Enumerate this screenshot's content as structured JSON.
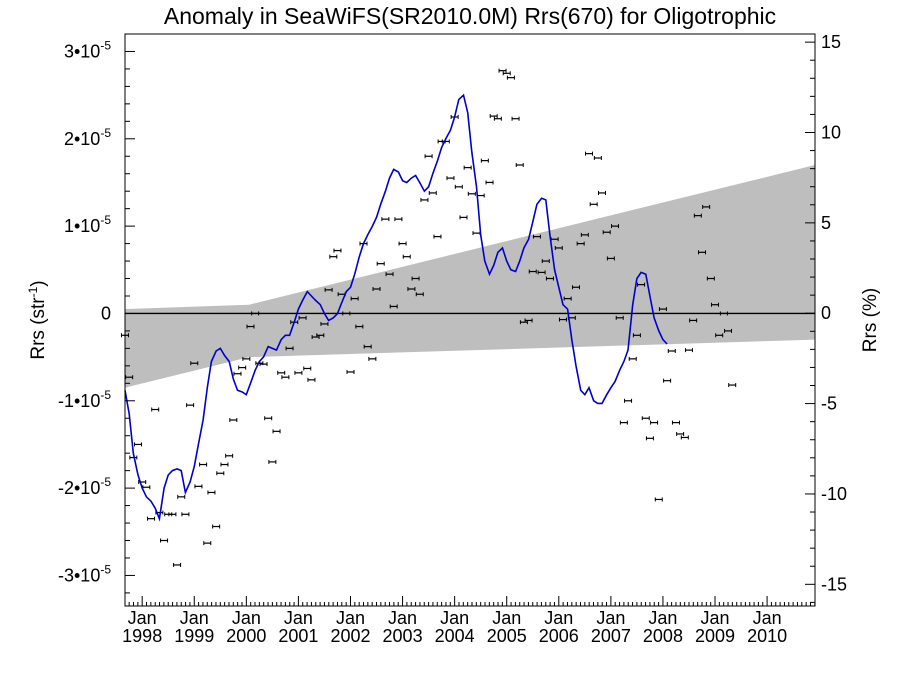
{
  "chart_data": {
    "type": "line",
    "title": "Anomaly in SeaWiFS(SR2010.0M) Rrs(670) for Oligotrophic",
    "ylabel": "Rrs (str",
    "ylabel_sup": "-1",
    "ylabel_close": ")",
    "y2label": "Rrs (%)",
    "xlim": [
      1997.67,
      2010.92
    ],
    "ylim": [
      -3.35,
      3.2
    ],
    "y_unit_exponent": -5,
    "y2lim": [
      -16.2,
      15.45
    ],
    "grid": false,
    "x_ticks": [
      {
        "month": "Jan",
        "year": "1998",
        "x": 1998
      },
      {
        "month": "Jan",
        "year": "1999",
        "x": 1999
      },
      {
        "month": "Jan",
        "year": "2000",
        "x": 2000
      },
      {
        "month": "Jan",
        "year": "2001",
        "x": 2001
      },
      {
        "month": "Jan",
        "year": "2002",
        "x": 2002
      },
      {
        "month": "Jan",
        "year": "2003",
        "x": 2003
      },
      {
        "month": "Jan",
        "year": "2004",
        "x": 2004
      },
      {
        "month": "Jan",
        "year": "2005",
        "x": 2005
      },
      {
        "month": "Jan",
        "year": "2006",
        "x": 2006
      },
      {
        "month": "Jan",
        "year": "2007",
        "x": 2007
      },
      {
        "month": "Jan",
        "year": "2008",
        "x": 2008
      },
      {
        "month": "Jan",
        "year": "2009",
        "x": 2009
      },
      {
        "month": "Jan",
        "year": "2010",
        "x": 2010
      }
    ],
    "y_ticks": [
      {
        "mant": "3",
        "exp": "-5",
        "v": 3
      },
      {
        "mant": "2",
        "exp": "-5",
        "v": 2
      },
      {
        "mant": "1",
        "exp": "-5",
        "v": 1
      },
      {
        "mant": "0",
        "exp": "",
        "v": 0
      },
      {
        "mant": "-1",
        "exp": "-5",
        "v": -1
      },
      {
        "mant": "-2",
        "exp": "-5",
        "v": -2
      },
      {
        "mant": "-3",
        "exp": "-5",
        "v": -3
      }
    ],
    "y2_ticks": [
      {
        "label": "15",
        "v": 15
      },
      {
        "label": "10",
        "v": 10
      },
      {
        "label": "5",
        "v": 5
      },
      {
        "label": "0",
        "v": 0
      },
      {
        "label": "-5",
        "v": -5
      },
      {
        "label": "-10",
        "v": -10
      },
      {
        "label": "-15",
        "v": -15
      }
    ],
    "band": {
      "color": "#bebebe",
      "upper": [
        [
          1997.67,
          0.05
        ],
        [
          2000.05,
          0.1
        ],
        [
          2010.92,
          1.7
        ]
      ],
      "lower": [
        [
          1997.67,
          -0.85
        ],
        [
          2000.05,
          -0.5
        ],
        [
          2010.92,
          -0.3
        ]
      ]
    },
    "zero_line": 0,
    "series": [
      {
        "kind": "points",
        "color": "#000000",
        "values": [
          [
            1997.67,
            -0.25
          ],
          [
            1997.75,
            -0.73
          ],
          [
            1997.83,
            -1.65
          ],
          [
            1997.92,
            -1.5
          ],
          [
            1998.0,
            -1.93
          ],
          [
            1998.08,
            -1.99
          ],
          [
            1998.17,
            -2.35
          ],
          [
            1998.25,
            -1.1
          ],
          [
            1998.33,
            -2.28
          ],
          [
            1998.42,
            -2.6
          ],
          [
            1998.5,
            -2.3
          ],
          [
            1998.58,
            -2.3
          ],
          [
            1998.67,
            -2.88
          ],
          [
            1998.75,
            -2.1
          ],
          [
            1998.83,
            -2.3
          ],
          [
            1998.92,
            -1.05
          ],
          [
            1999.0,
            -0.57
          ],
          [
            1999.08,
            -1.98
          ],
          [
            1999.17,
            -1.73
          ],
          [
            1999.25,
            -2.63
          ],
          [
            1999.33,
            -2.05
          ],
          [
            1999.42,
            -2.44
          ],
          [
            1999.5,
            -1.83
          ],
          [
            1999.58,
            -1.73
          ],
          [
            1999.67,
            -1.63
          ],
          [
            1999.75,
            -1.22
          ],
          [
            1999.83,
            -0.69
          ],
          [
            1999.92,
            -0.62
          ],
          [
            2000.0,
            -0.52
          ],
          [
            2000.08,
            -0.15
          ],
          [
            2000.17,
            0.0
          ],
          [
            2000.25,
            -0.57
          ],
          [
            2000.33,
            -0.58
          ],
          [
            2000.42,
            -1.2
          ],
          [
            2000.5,
            -1.7
          ],
          [
            2000.58,
            -1.35
          ],
          [
            2000.67,
            -0.68
          ],
          [
            2000.75,
            -0.73
          ],
          [
            2000.83,
            -0.4
          ],
          [
            2000.92,
            -0.1
          ],
          [
            2001.0,
            -0.68
          ],
          [
            2001.08,
            -0.05
          ],
          [
            2001.17,
            -0.63
          ],
          [
            2001.25,
            -0.76
          ],
          [
            2001.33,
            -0.27
          ],
          [
            2001.42,
            -0.25
          ],
          [
            2001.5,
            -0.12
          ],
          [
            2001.58,
            0.27
          ],
          [
            2001.67,
            0.65
          ],
          [
            2001.75,
            0.72
          ],
          [
            2001.83,
            0.22
          ],
          [
            2001.92,
            0.0
          ],
          [
            2002.0,
            -0.67
          ],
          [
            2002.08,
            0.17
          ],
          [
            2002.17,
            -0.15
          ],
          [
            2002.25,
            0.8
          ],
          [
            2002.33,
            -0.38
          ],
          [
            2002.42,
            -0.52
          ],
          [
            2002.5,
            0.28
          ],
          [
            2002.58,
            0.57
          ],
          [
            2002.67,
            1.08
          ],
          [
            2002.75,
            0.45
          ],
          [
            2002.83,
            0.08
          ],
          [
            2002.92,
            1.08
          ],
          [
            2003.0,
            0.8
          ],
          [
            2003.08,
            0.65
          ],
          [
            2003.17,
            0.28
          ],
          [
            2003.25,
            0.4
          ],
          [
            2003.33,
            0.22
          ],
          [
            2003.42,
            1.3
          ],
          [
            2003.5,
            1.8
          ],
          [
            2003.58,
            1.38
          ],
          [
            2003.67,
            0.88
          ],
          [
            2003.75,
            1.97
          ],
          [
            2003.83,
            1.97
          ],
          [
            2003.92,
            1.55
          ],
          [
            2004.0,
            2.25
          ],
          [
            2004.08,
            1.45
          ],
          [
            2004.17,
            1.1
          ],
          [
            2004.25,
            1.67
          ],
          [
            2004.33,
            1.37
          ],
          [
            2004.42,
            0.92
          ],
          [
            2004.5,
            1.35
          ],
          [
            2004.58,
            1.75
          ],
          [
            2004.67,
            1.5
          ],
          [
            2004.75,
            2.26
          ],
          [
            2004.83,
            2.23
          ],
          [
            2004.92,
            2.78
          ],
          [
            2005.0,
            2.75
          ],
          [
            2005.08,
            2.7
          ],
          [
            2005.17,
            2.23
          ],
          [
            2005.25,
            1.7
          ],
          [
            2005.33,
            -0.1
          ],
          [
            2005.42,
            -0.08
          ],
          [
            2005.5,
            0.48
          ],
          [
            2005.58,
            0.88
          ],
          [
            2005.67,
            0.47
          ],
          [
            2005.75,
            0.6
          ],
          [
            2005.83,
            0.4
          ],
          [
            2005.92,
            0.85
          ],
          [
            2006.0,
            0.75
          ],
          [
            2006.08,
            -0.07
          ],
          [
            2006.17,
            0.17
          ],
          [
            2006.25,
            -0.05
          ],
          [
            2006.33,
            0.3
          ],
          [
            2006.42,
            0.8
          ],
          [
            2006.5,
            0.9
          ],
          [
            2006.58,
            1.83
          ],
          [
            2006.67,
            1.25
          ],
          [
            2006.75,
            1.78
          ],
          [
            2006.83,
            1.38
          ],
          [
            2006.92,
            0.93
          ],
          [
            2007.0,
            0.63
          ],
          [
            2007.08,
            1.0
          ],
          [
            2007.17,
            -0.05
          ],
          [
            2007.25,
            -1.25
          ],
          [
            2007.33,
            -1.0
          ],
          [
            2007.42,
            -0.52
          ],
          [
            2007.5,
            -0.25
          ],
          [
            2007.58,
            0.33
          ],
          [
            2007.67,
            -1.2
          ],
          [
            2007.75,
            -1.43
          ],
          [
            2007.83,
            -1.25
          ],
          [
            2007.92,
            -2.13
          ],
          [
            2008.0,
            0.05
          ],
          [
            2008.08,
            -0.77
          ],
          [
            2008.17,
            -0.43
          ],
          [
            2008.25,
            -1.25
          ],
          [
            2008.33,
            -1.38
          ],
          [
            2008.42,
            -1.42
          ],
          [
            2008.5,
            -0.42
          ],
          [
            2008.58,
            -0.08
          ],
          [
            2008.67,
            1.12
          ],
          [
            2008.75,
            0.7
          ],
          [
            2008.83,
            1.22
          ],
          [
            2008.92,
            0.4
          ],
          [
            2009.0,
            0.1
          ],
          [
            2009.08,
            -0.25
          ],
          [
            2009.17,
            0.0
          ],
          [
            2009.25,
            -0.2
          ],
          [
            2009.33,
            -0.82
          ]
        ]
      },
      {
        "kind": "line",
        "color": "#0000cc",
        "values": [
          [
            1997.67,
            -0.88
          ],
          [
            1997.75,
            -1.15
          ],
          [
            1997.83,
            -1.6
          ],
          [
            1997.92,
            -1.85
          ],
          [
            1998.0,
            -2.0
          ],
          [
            1998.08,
            -2.1
          ],
          [
            1998.17,
            -2.15
          ],
          [
            1998.25,
            -2.23
          ],
          [
            1998.33,
            -2.35
          ],
          [
            1998.42,
            -2.0
          ],
          [
            1998.5,
            -1.85
          ],
          [
            1998.58,
            -1.8
          ],
          [
            1998.67,
            -1.78
          ],
          [
            1998.75,
            -1.8
          ],
          [
            1998.83,
            -2.05
          ],
          [
            1998.92,
            -1.93
          ],
          [
            1999.0,
            -1.75
          ],
          [
            1999.08,
            -1.5
          ],
          [
            1999.17,
            -1.22
          ],
          [
            1999.25,
            -0.85
          ],
          [
            1999.33,
            -0.55
          ],
          [
            1999.42,
            -0.43
          ],
          [
            1999.5,
            -0.4
          ],
          [
            1999.58,
            -0.48
          ],
          [
            1999.67,
            -0.55
          ],
          [
            1999.75,
            -0.75
          ],
          [
            1999.83,
            -0.88
          ],
          [
            1999.92,
            -0.9
          ],
          [
            2000.0,
            -0.93
          ],
          [
            2000.08,
            -0.8
          ],
          [
            2000.17,
            -0.65
          ],
          [
            2000.25,
            -0.55
          ],
          [
            2000.33,
            -0.5
          ],
          [
            2000.42,
            -0.38
          ],
          [
            2000.5,
            -0.4
          ],
          [
            2000.58,
            -0.42
          ],
          [
            2000.67,
            -0.3
          ],
          [
            2000.75,
            -0.25
          ],
          [
            2000.83,
            -0.25
          ],
          [
            2000.92,
            -0.1
          ],
          [
            2001.0,
            0.05
          ],
          [
            2001.08,
            0.15
          ],
          [
            2001.17,
            0.25
          ],
          [
            2001.25,
            0.2
          ],
          [
            2001.33,
            0.15
          ],
          [
            2001.42,
            0.1
          ],
          [
            2001.5,
            0.0
          ],
          [
            2001.58,
            -0.08
          ],
          [
            2001.67,
            -0.05
          ],
          [
            2001.75,
            0.0
          ],
          [
            2001.83,
            0.12
          ],
          [
            2001.92,
            0.25
          ],
          [
            2002.0,
            0.3
          ],
          [
            2002.08,
            0.45
          ],
          [
            2002.17,
            0.65
          ],
          [
            2002.25,
            0.8
          ],
          [
            2002.33,
            0.9
          ],
          [
            2002.42,
            1.0
          ],
          [
            2002.5,
            1.1
          ],
          [
            2002.58,
            1.25
          ],
          [
            2002.67,
            1.4
          ],
          [
            2002.75,
            1.55
          ],
          [
            2002.83,
            1.65
          ],
          [
            2002.92,
            1.62
          ],
          [
            2003.0,
            1.52
          ],
          [
            2003.08,
            1.5
          ],
          [
            2003.17,
            1.55
          ],
          [
            2003.25,
            1.58
          ],
          [
            2003.33,
            1.5
          ],
          [
            2003.42,
            1.4
          ],
          [
            2003.5,
            1.45
          ],
          [
            2003.58,
            1.6
          ],
          [
            2003.67,
            1.75
          ],
          [
            2003.75,
            1.9
          ],
          [
            2003.83,
            2.0
          ],
          [
            2003.92,
            2.1
          ],
          [
            2004.0,
            2.25
          ],
          [
            2004.08,
            2.45
          ],
          [
            2004.17,
            2.5
          ],
          [
            2004.25,
            2.3
          ],
          [
            2004.33,
            1.85
          ],
          [
            2004.42,
            1.45
          ],
          [
            2004.5,
            0.9
          ],
          [
            2004.58,
            0.6
          ],
          [
            2004.67,
            0.45
          ],
          [
            2004.75,
            0.55
          ],
          [
            2004.83,
            0.7
          ],
          [
            2004.92,
            0.75
          ],
          [
            2005.0,
            0.6
          ],
          [
            2005.08,
            0.5
          ],
          [
            2005.17,
            0.48
          ],
          [
            2005.25,
            0.6
          ],
          [
            2005.33,
            0.75
          ],
          [
            2005.42,
            0.85
          ],
          [
            2005.5,
            1.05
          ],
          [
            2005.58,
            1.25
          ],
          [
            2005.67,
            1.32
          ],
          [
            2005.75,
            1.3
          ],
          [
            2005.83,
            0.9
          ],
          [
            2005.92,
            0.5
          ],
          [
            2006.0,
            0.3
          ],
          [
            2006.08,
            0.1
          ],
          [
            2006.17,
            0.05
          ],
          [
            2006.25,
            -0.3
          ],
          [
            2006.33,
            -0.6
          ],
          [
            2006.42,
            -0.88
          ],
          [
            2006.5,
            -0.93
          ],
          [
            2006.58,
            -0.85
          ],
          [
            2006.67,
            -1.0
          ],
          [
            2006.75,
            -1.03
          ],
          [
            2006.83,
            -1.03
          ],
          [
            2006.92,
            -0.93
          ],
          [
            2007.0,
            -0.85
          ],
          [
            2007.08,
            -0.78
          ],
          [
            2007.17,
            -0.65
          ],
          [
            2007.25,
            -0.55
          ],
          [
            2007.33,
            -0.42
          ],
          [
            2007.42,
            0.1
          ],
          [
            2007.5,
            0.4
          ],
          [
            2007.58,
            0.47
          ],
          [
            2007.67,
            0.45
          ],
          [
            2007.75,
            0.2
          ],
          [
            2007.83,
            -0.05
          ],
          [
            2007.92,
            -0.2
          ],
          [
            2008.0,
            -0.3
          ],
          [
            2008.08,
            -0.35
          ]
        ]
      }
    ]
  }
}
